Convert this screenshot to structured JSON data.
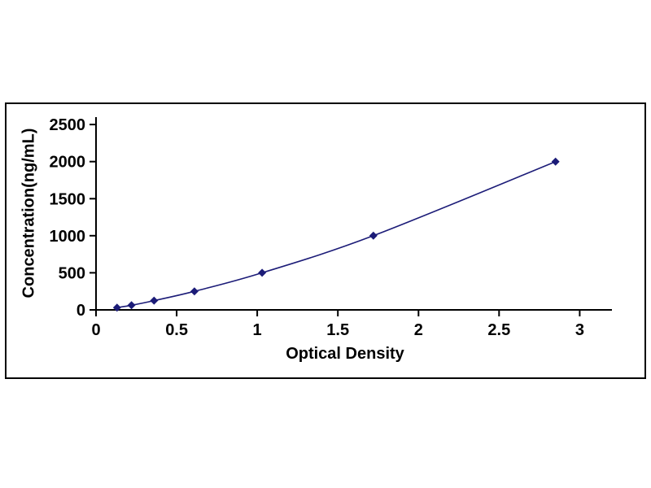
{
  "chart_data": {
    "type": "line",
    "title": "",
    "xlabel": "Optical Density",
    "ylabel": "Concentration(ng/mL)",
    "x": [
      0.13,
      0.22,
      0.36,
      0.61,
      1.03,
      1.72,
      2.85
    ],
    "y": [
      31.25,
      62.5,
      125,
      250,
      500,
      1000,
      2000
    ],
    "xlim": [
      0,
      3.2
    ],
    "ylim": [
      0,
      2600
    ],
    "xticks": [
      0,
      0.5,
      1,
      1.5,
      2,
      2.5,
      3
    ],
    "yticks": [
      0,
      500,
      1000,
      1500,
      2000,
      2500
    ],
    "grid": false,
    "marker": "diamond",
    "line_color": "#1c1c78",
    "axis_color": "#000000",
    "frame_color": "#000000",
    "background_color": "#ffffff"
  }
}
